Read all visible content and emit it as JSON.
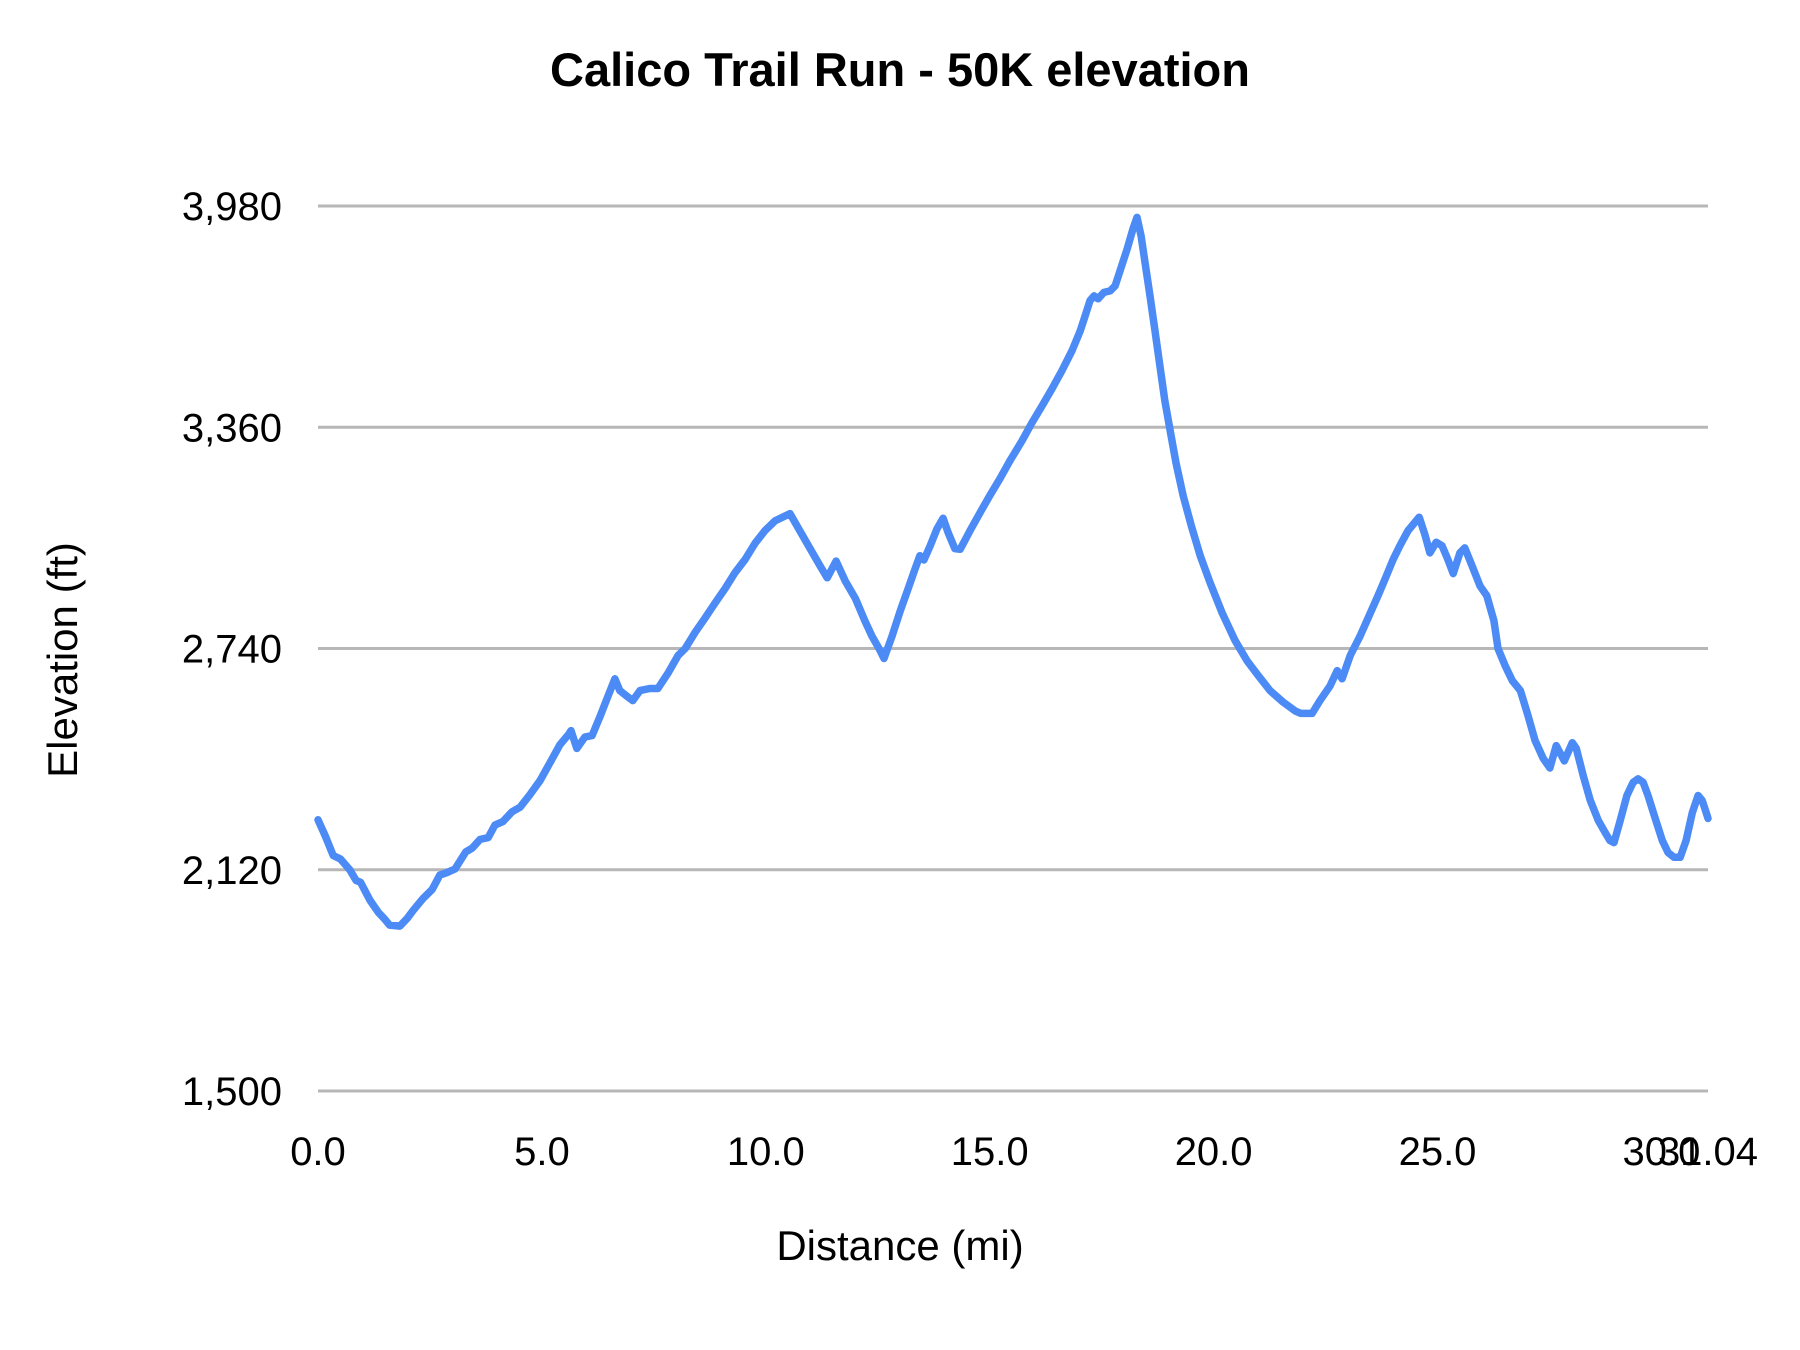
{
  "page": {
    "background": "#ffffff"
  },
  "chart_data": {
    "type": "line",
    "title": "Calico Trail Run - 50K elevation",
    "xlabel": "Distance (mi)",
    "ylabel": "Elevation (ft)",
    "xlim": [
      0,
      31.04
    ],
    "ylim": [
      1500,
      3980
    ],
    "grid": "horizontal",
    "legend": "none",
    "line_color": "#4c8bf5",
    "grid_color": "#b7b7b7",
    "x_ticks": [
      {
        "value": 0,
        "label": "0.0"
      },
      {
        "value": 5,
        "label": "5.0"
      },
      {
        "value": 10,
        "label": "10.0"
      },
      {
        "value": 15,
        "label": "15.0"
      },
      {
        "value": 20,
        "label": "20.0"
      },
      {
        "value": 25,
        "label": "25.0"
      },
      {
        "value": 30,
        "label": "30.0"
      },
      {
        "value": 31.04,
        "label": "31.04"
      }
    ],
    "y_ticks": [
      {
        "value": 1500,
        "label": "1,500"
      },
      {
        "value": 2120,
        "label": "2,120"
      },
      {
        "value": 2740,
        "label": "2,740"
      },
      {
        "value": 3360,
        "label": "3,360"
      },
      {
        "value": 3980,
        "label": "3,980"
      }
    ],
    "series": [
      {
        "name": "Elevation",
        "x": [
          0,
          0.16,
          0.34,
          0.5,
          0.71,
          0.85,
          0.95,
          1.16,
          1.35,
          1.5,
          1.6,
          1.83,
          2.0,
          2.12,
          2.35,
          2.55,
          2.72,
          2.88,
          3.06,
          3.3,
          3.44,
          3.62,
          3.8,
          3.95,
          4.13,
          4.33,
          4.51,
          4.73,
          4.96,
          5.18,
          5.4,
          5.6,
          5.65,
          5.78,
          5.96,
          6.12,
          6.3,
          6.48,
          6.63,
          6.74,
          6.88,
          7.03,
          7.19,
          7.41,
          7.59,
          7.82,
          8.04,
          8.2,
          8.42,
          8.64,
          8.87,
          9.09,
          9.31,
          9.54,
          9.76,
          9.98,
          10.21,
          10.54,
          10.76,
          10.99,
          11.21,
          11.37,
          11.57,
          11.77,
          12.0,
          12.21,
          12.37,
          12.55,
          12.64,
          12.82,
          13.0,
          13.18,
          13.33,
          13.44,
          13.53,
          13.67,
          13.82,
          13.96,
          14.07,
          14.22,
          14.34,
          14.56,
          14.78,
          15.0,
          15.23,
          15.45,
          15.72,
          15.94,
          16.17,
          16.39,
          16.61,
          16.84,
          17.02,
          17.13,
          17.24,
          17.33,
          17.42,
          17.55,
          17.69,
          17.8,
          17.91,
          18.07,
          18.2,
          18.29,
          18.38,
          18.47,
          18.58,
          18.69,
          18.8,
          18.91,
          19.03,
          19.16,
          19.32,
          19.5,
          19.7,
          19.92,
          20.19,
          20.48,
          20.75,
          20.99,
          21.26,
          21.55,
          21.82,
          21.95,
          22.2,
          22.38,
          22.6,
          22.76,
          22.87,
          23.05,
          23.27,
          23.5,
          23.67,
          23.83,
          24.01,
          24.16,
          24.34,
          24.59,
          24.72,
          24.83,
          24.97,
          25.1,
          25.23,
          25.35,
          25.5,
          25.61,
          25.77,
          25.95,
          26.1,
          26.26,
          26.35,
          26.51,
          26.67,
          26.85,
          27.02,
          27.18,
          27.36,
          27.51,
          27.65,
          27.83,
          28.01,
          28.1,
          28.25,
          28.41,
          28.59,
          28.74,
          28.85,
          28.94,
          29.08,
          29.23,
          29.37,
          29.48,
          29.59,
          29.7,
          29.86,
          30.02,
          30.15,
          30.28,
          30.42,
          30.55,
          30.69,
          30.82,
          30.91,
          31.0,
          31.04
        ],
        "y": [
          2260,
          2215,
          2160,
          2150,
          2120,
          2090,
          2085,
          2035,
          2000,
          1980,
          1965,
          1962,
          1985,
          2005,
          2040,
          2065,
          2105,
          2112,
          2122,
          2170,
          2180,
          2205,
          2210,
          2245,
          2255,
          2282,
          2295,
          2330,
          2370,
          2420,
          2470,
          2500,
          2510,
          2460,
          2492,
          2496,
          2550,
          2608,
          2655,
          2622,
          2608,
          2594,
          2622,
          2628,
          2628,
          2672,
          2720,
          2740,
          2785,
          2825,
          2868,
          2908,
          2952,
          2990,
          3035,
          3070,
          3098,
          3118,
          3070,
          3020,
          2972,
          2938,
          2985,
          2930,
          2880,
          2818,
          2775,
          2735,
          2712,
          2775,
          2845,
          2908,
          2962,
          3000,
          2988,
          3028,
          3075,
          3105,
          3065,
          3020,
          3018,
          3070,
          3120,
          3168,
          3216,
          3266,
          3322,
          3372,
          3420,
          3468,
          3518,
          3575,
          3630,
          3672,
          3715,
          3728,
          3720,
          3738,
          3742,
          3756,
          3798,
          3860,
          3916,
          3948,
          3896,
          3820,
          3728,
          3630,
          3532,
          3435,
          3350,
          3260,
          3168,
          3085,
          3000,
          2925,
          2840,
          2762,
          2705,
          2665,
          2622,
          2590,
          2565,
          2558,
          2558,
          2595,
          2635,
          2678,
          2655,
          2720,
          2775,
          2840,
          2888,
          2935,
          2990,
          3028,
          3070,
          3108,
          3058,
          3008,
          3038,
          3028,
          2990,
          2950,
          3008,
          3022,
          2972,
          2915,
          2888,
          2818,
          2740,
          2692,
          2650,
          2622,
          2552,
          2482,
          2432,
          2405,
          2468,
          2425,
          2476,
          2460,
          2385,
          2315,
          2258,
          2225,
          2202,
          2196,
          2258,
          2328,
          2365,
          2375,
          2365,
          2328,
          2264,
          2202,
          2168,
          2155,
          2155,
          2202,
          2280,
          2328,
          2314,
          2280,
          2264
        ]
      }
    ]
  }
}
